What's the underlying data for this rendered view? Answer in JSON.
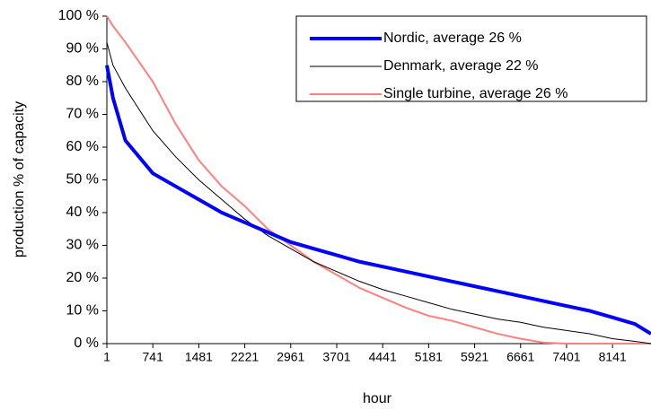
{
  "chart_data": {
    "type": "line",
    "x_label": "hour",
    "y_label": "production % of capacity",
    "x": [
      1,
      100,
      300,
      741,
      1111,
      1481,
      1851,
      2221,
      2591,
      2961,
      3331,
      3701,
      4071,
      4441,
      4811,
      5181,
      5551,
      5921,
      6291,
      6661,
      7031,
      7401,
      7771,
      8141,
      8500,
      8760
    ],
    "xlim": [
      1,
      8760
    ],
    "xticks": [
      1,
      741,
      1481,
      2221,
      2961,
      3701,
      4441,
      5181,
      5921,
      6661,
      7401,
      8141
    ],
    "ylim": [
      0,
      100
    ],
    "yticks": [
      {
        "value": 0,
        "label": "0 %"
      },
      {
        "value": 10,
        "label": "10 %"
      },
      {
        "value": 20,
        "label": "20 %"
      },
      {
        "value": 30,
        "label": "30 %"
      },
      {
        "value": 40,
        "label": "40 %"
      },
      {
        "value": 50,
        "label": "50 %"
      },
      {
        "value": 60,
        "label": "60 %"
      },
      {
        "value": 70,
        "label": "70 %"
      },
      {
        "value": 80,
        "label": "80 %"
      },
      {
        "value": 90,
        "label": "90 %"
      },
      {
        "value": 100,
        "label": "100 %"
      }
    ],
    "grid": false,
    "legend": "top-right",
    "series": [
      {
        "name": "Nordic, average 26 %",
        "color": "#0000ff",
        "width": 4,
        "values": [
          85,
          75,
          62,
          52,
          48,
          44,
          40,
          37,
          34,
          31,
          29,
          27,
          25,
          23.5,
          22,
          20.5,
          19,
          17.5,
          16,
          14.5,
          13,
          11.5,
          10,
          8,
          6,
          3
        ]
      },
      {
        "name": "Denmark, average 22 %",
        "color": "#000000",
        "width": 1,
        "values": [
          92,
          85,
          78,
          65,
          57,
          50,
          44,
          38,
          33,
          29,
          25,
          22,
          19,
          16.5,
          14.5,
          12.5,
          10.5,
          9,
          7.5,
          6.5,
          5,
          4,
          3,
          1.5,
          0.7,
          0
        ]
      },
      {
        "name": "Single turbine, average 26 %",
        "color": "#ff8080",
        "width": 2,
        "values": [
          100,
          97,
          92,
          80,
          67,
          56,
          48,
          42,
          35,
          30,
          25,
          21,
          17,
          14,
          11,
          8.5,
          7,
          5,
          3,
          1.5,
          0.3,
          0,
          0,
          0,
          0,
          0
        ]
      }
    ]
  }
}
